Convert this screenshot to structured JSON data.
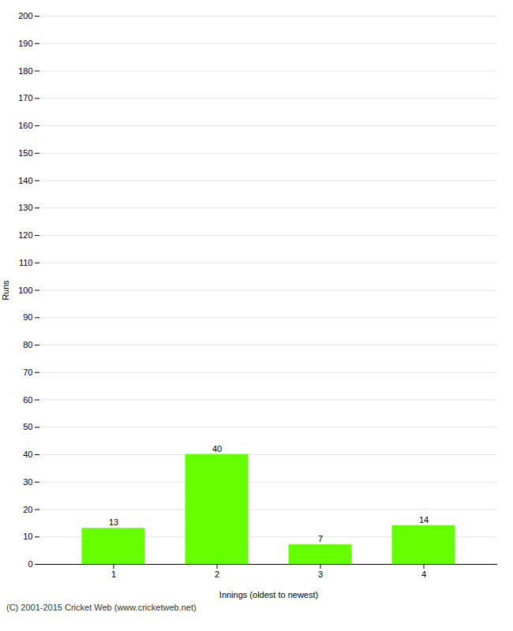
{
  "chart_data": {
    "type": "bar",
    "categories": [
      1,
      2,
      3,
      4
    ],
    "values": [
      13,
      40,
      7,
      14
    ],
    "color": "#66ff00",
    "xlabel": "Innings (oldest to newest)",
    "ylabel": "Runs",
    "ylim": [
      0,
      200
    ],
    "yticks": [
      0,
      10,
      20,
      30,
      40,
      50,
      60,
      70,
      80,
      90,
      100,
      110,
      120,
      130,
      140,
      150,
      160,
      170,
      180,
      190,
      200
    ],
    "grid": true,
    "data_labels": true,
    "annotations": [
      {
        "text": "(C) 2001-2015 Cricket Web (www.cricketweb.net)"
      }
    ]
  }
}
